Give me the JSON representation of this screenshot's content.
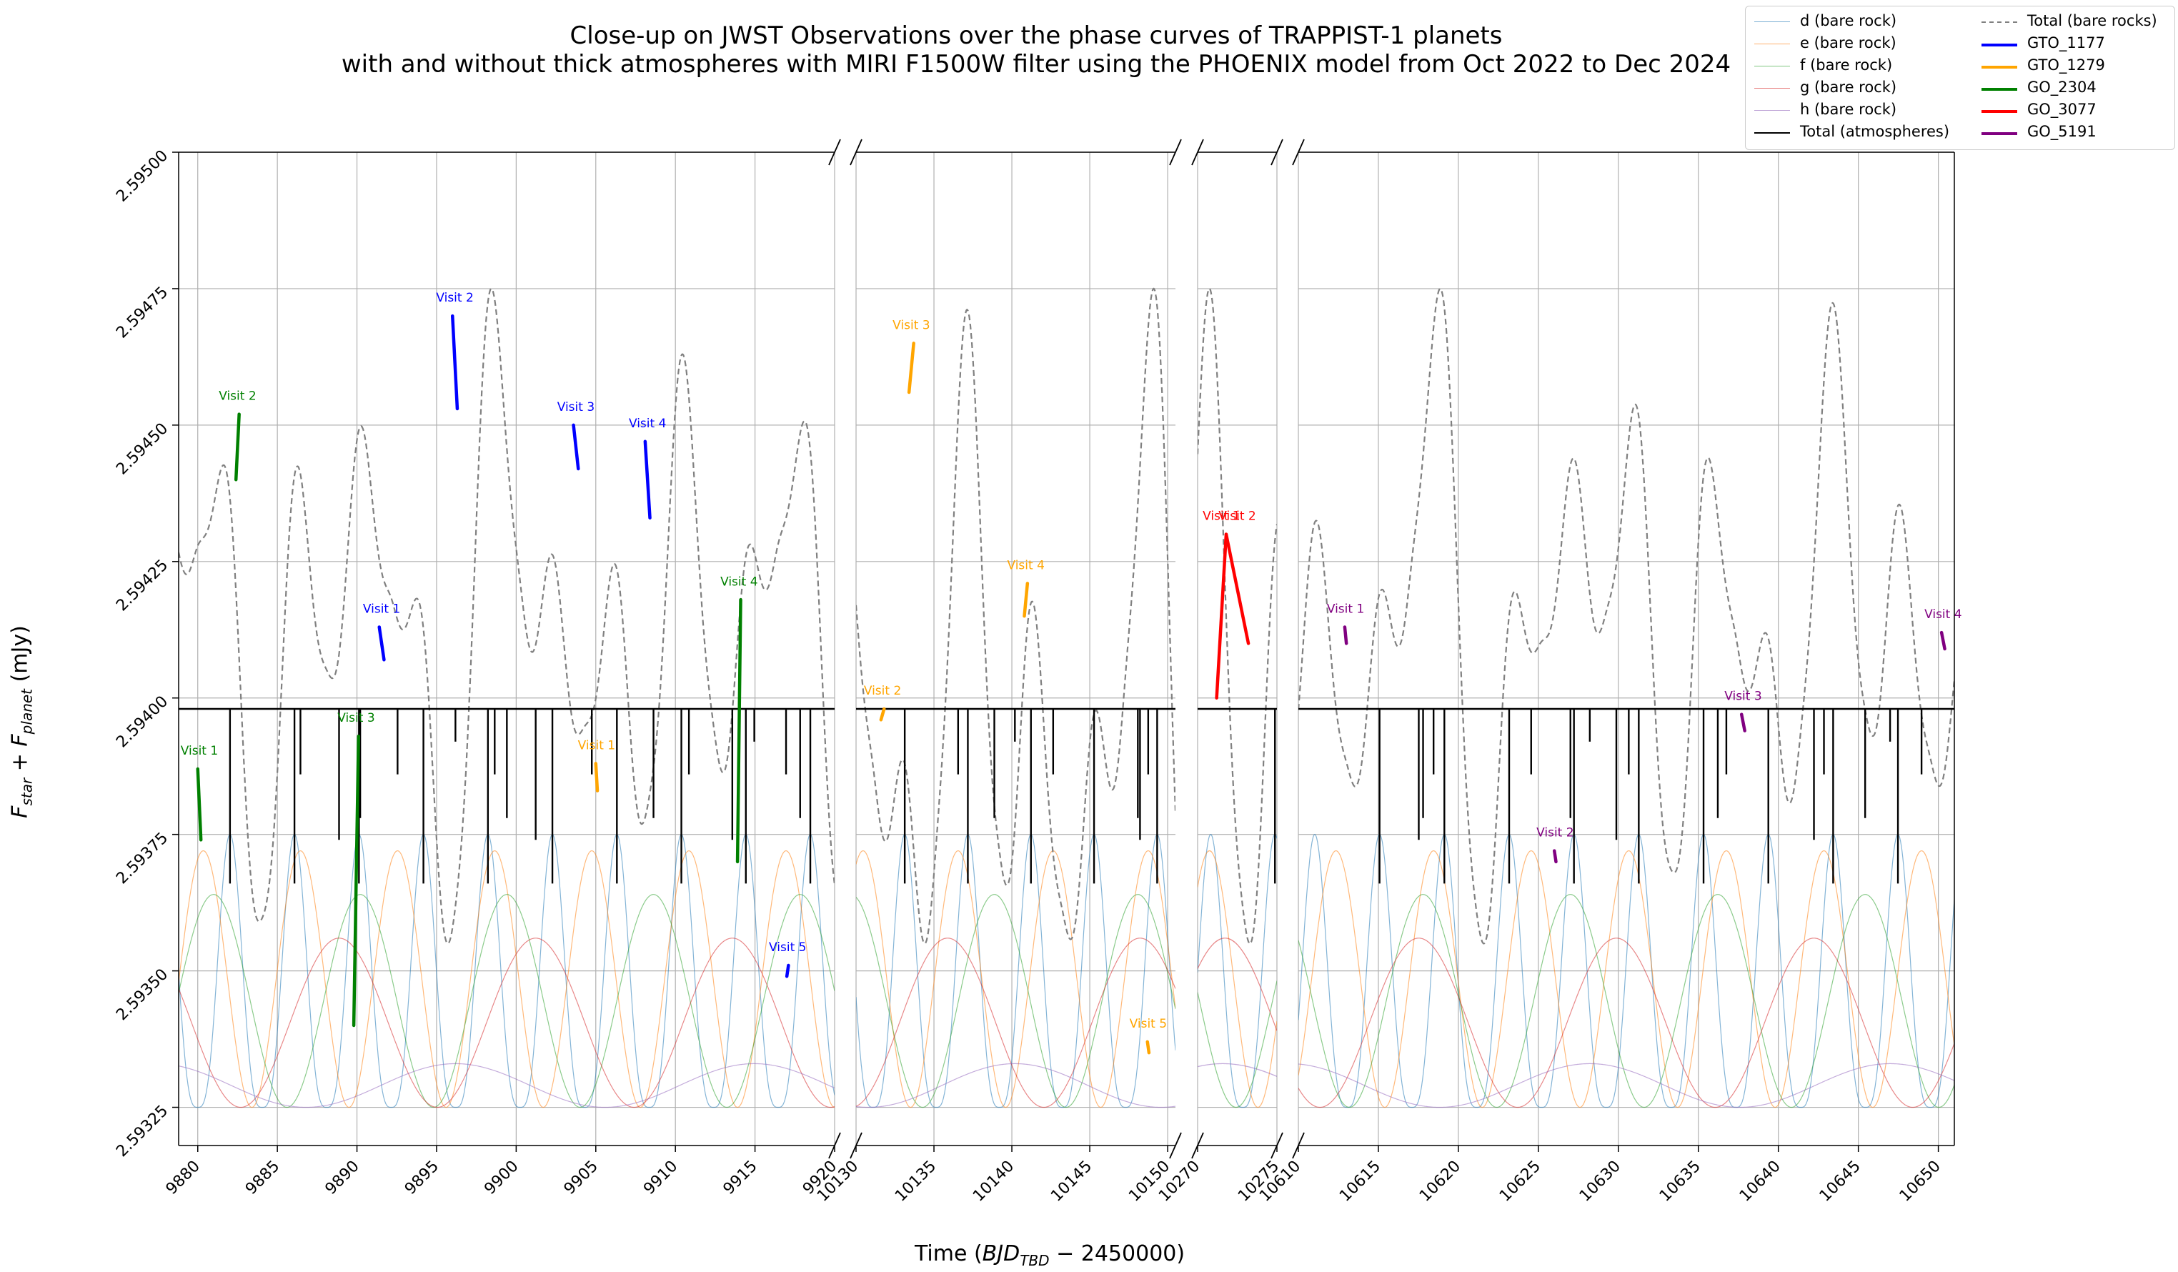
{
  "title_lines": [
    "Close-up on JWST Observations over the phase curves of TRAPPIST-1 planets",
    "with and without thick atmospheres with MIRI F1500W filter using the PHOENIX model from Oct 2022 to Dec 2024"
  ],
  "ylabel": "F_star + F_planet (mJy)",
  "xlabel": "Time (BJD_TBD − 2450000)",
  "legend": [
    {
      "label": "d (bare rock)",
      "color": "#1f77b4",
      "style": "thin"
    },
    {
      "label": "e (bare rock)",
      "color": "#ff7f0e",
      "style": "thin"
    },
    {
      "label": "f (bare rock)",
      "color": "#2ca02c",
      "style": "thin"
    },
    {
      "label": "g (bare rock)",
      "color": "#d62728",
      "style": "thin"
    },
    {
      "label": "h (bare rock)",
      "color": "#9467bd",
      "style": "thin"
    },
    {
      "label": "Total (atmospheres)",
      "color": "#000000",
      "style": "solid"
    },
    {
      "label": "Total (bare rocks)",
      "color": "#808080",
      "style": "dashed"
    },
    {
      "label": "GTO_1177",
      "color": "#0000ff",
      "style": "thick"
    },
    {
      "label": "GTO_1279",
      "color": "#ffa500",
      "style": "thick"
    },
    {
      "label": "GO_2304",
      "color": "#008000",
      "style": "thick"
    },
    {
      "label": "GO_3077",
      "color": "#ff0000",
      "style": "thick"
    },
    {
      "label": "GO_5191",
      "color": "#800080",
      "style": "thick"
    }
  ],
  "chart_data": {
    "type": "line",
    "y_scale": "linear",
    "ylim": [
      2.59318,
      2.595
    ],
    "yticks": [
      2.59325,
      2.5935,
      2.59375,
      2.594,
      2.59425,
      2.5945,
      2.59475,
      2.595
    ],
    "ytick_labels": [
      "2.59325",
      "2.59350",
      "2.59375",
      "2.59400",
      "2.59425",
      "2.59450",
      "2.59475",
      "2.59500"
    ],
    "grid": true,
    "legend_position": "top-right",
    "total_atmospheres_level": 2.59398,
    "panels": [
      {
        "xlim": [
          9878.8,
          9920
        ],
        "xticks": [
          9880,
          9885,
          9890,
          9895,
          9900,
          9905,
          9910,
          9915,
          9920
        ],
        "xtick_labels": [
          "9880",
          "9885",
          "9890",
          "9895",
          "9900",
          "9905",
          "9910",
          "9915",
          "9920"
        ]
      },
      {
        "xlim": [
          10130,
          10150.5
        ],
        "xticks": [
          10130,
          10135,
          10140,
          10145,
          10150
        ],
        "xtick_labels": [
          "10130",
          "10135",
          "10140",
          "10145",
          "10150"
        ]
      },
      {
        "xlim": [
          10270,
          10275
        ],
        "xticks": [
          10270,
          10275
        ],
        "xtick_labels": [
          "10270",
          "10275"
        ]
      },
      {
        "xlim": [
          10610,
          10651
        ],
        "xticks": [
          10610,
          10615,
          10620,
          10625,
          10630,
          10635,
          10640,
          10645,
          10650
        ],
        "xtick_labels": [
          "10610",
          "10615",
          "10620",
          "10625",
          "10630",
          "10635",
          "10640",
          "10645",
          "10650"
        ]
      }
    ],
    "series": [
      {
        "name": "d (bare rock)",
        "color": "#1f77b4",
        "period": 4.05,
        "phase": 9880.0,
        "min": 2.59325,
        "max": 2.59375,
        "kind": "peaked"
      },
      {
        "name": "e (bare rock)",
        "color": "#ff7f0e",
        "period": 6.1,
        "phase": 9883.4,
        "min": 2.59325,
        "max": 2.59372,
        "kind": "smooth"
      },
      {
        "name": "f (bare rock)",
        "color": "#2ca02c",
        "period": 9.21,
        "phase": 9885.6,
        "min": 2.59325,
        "max": 2.59364,
        "kind": "smooth"
      },
      {
        "name": "g (bare rock)",
        "color": "#d62728",
        "period": 12.35,
        "phase": 9882.7,
        "min": 2.59325,
        "max": 2.59356,
        "kind": "smooth"
      },
      {
        "name": "h (bare rock)",
        "color": "#9467bd",
        "period": 18.77,
        "phase": 9886.8,
        "min": 2.59325,
        "max": 2.59333,
        "kind": "smooth"
      }
    ],
    "observations": [
      {
        "program": "GO_2304",
        "label": "Visit 1",
        "x": [
          9880.0,
          9880.2
        ],
        "y": [
          2.59387,
          2.59374
        ],
        "panel": 0
      },
      {
        "program": "GO_2304",
        "label": "Visit 2",
        "x": [
          9882.4,
          9882.6
        ],
        "y": [
          2.5944,
          2.59452
        ],
        "panel": 0
      },
      {
        "program": "GO_2304",
        "label": "Visit 3",
        "x": [
          9889.8,
          9890.1
        ],
        "y": [
          2.5934,
          2.59393
        ],
        "panel": 0
      },
      {
        "program": "GO_2304",
        "label": "Visit 4",
        "x": [
          9913.9,
          9914.1
        ],
        "y": [
          2.5937,
          2.59418
        ],
        "panel": 0
      },
      {
        "program": "GTO_1177",
        "label": "Visit 1",
        "x": [
          9891.4,
          9891.7
        ],
        "y": [
          2.59413,
          2.59407
        ],
        "panel": 0
      },
      {
        "program": "GTO_1177",
        "label": "Visit 2",
        "x": [
          9896.0,
          9896.3
        ],
        "y": [
          2.5947,
          2.59453
        ],
        "panel": 0
      },
      {
        "program": "GTO_1177",
        "label": "Visit 3",
        "x": [
          9903.6,
          9903.9
        ],
        "y": [
          2.5945,
          2.59442
        ],
        "panel": 0
      },
      {
        "program": "GTO_1177",
        "label": "Visit 4",
        "x": [
          9908.1,
          9908.4
        ],
        "y": [
          2.59447,
          2.59433
        ],
        "panel": 0
      },
      {
        "program": "GTO_1177",
        "label": "Visit 5",
        "x": [
          9917.0,
          9917.1
        ],
        "y": [
          2.59349,
          2.59351
        ],
        "panel": 0
      },
      {
        "program": "GTO_1279",
        "label": "Visit 1",
        "x": [
          9905.0,
          9905.1
        ],
        "y": [
          2.59388,
          2.59383
        ],
        "panel": 0
      },
      {
        "program": "GTO_1279",
        "label": "Visit 2",
        "x": [
          10131.6,
          10131.8
        ],
        "y": [
          2.59396,
          2.59398
        ],
        "panel": 1
      },
      {
        "program": "GTO_1279",
        "label": "Visit 3",
        "x": [
          10133.4,
          10133.7
        ],
        "y": [
          2.59456,
          2.59465
        ],
        "panel": 1
      },
      {
        "program": "GTO_1279",
        "label": "Visit 4",
        "x": [
          10140.8,
          10141.0
        ],
        "y": [
          2.59415,
          2.59421
        ],
        "panel": 1
      },
      {
        "program": "GTO_1279",
        "label": "Visit 5",
        "x": [
          10148.7,
          10148.8
        ],
        "y": [
          2.59337,
          2.59335
        ],
        "panel": 1
      },
      {
        "program": "GO_3077",
        "label": "Visit 1",
        "x": [
          10271.2,
          10271.8
        ],
        "y": [
          2.594,
          2.5943
        ],
        "panel": 2
      },
      {
        "program": "GO_3077",
        "label": "Visit 2",
        "x": [
          10271.8,
          10273.2
        ],
        "y": [
          2.5943,
          2.5941
        ],
        "panel": 2
      },
      {
        "program": "GO_5191",
        "label": "Visit 1",
        "x": [
          10612.9,
          10613.0
        ],
        "y": [
          2.59413,
          2.5941
        ],
        "panel": 3
      },
      {
        "program": "GO_5191",
        "label": "Visit 2",
        "x": [
          10626.0,
          10626.1
        ],
        "y": [
          2.59372,
          2.5937
        ],
        "panel": 3
      },
      {
        "program": "GO_5191",
        "label": "Visit 3",
        "x": [
          10637.7,
          10637.9
        ],
        "y": [
          2.59397,
          2.59394
        ],
        "panel": 3
      },
      {
        "program": "GO_5191",
        "label": "Visit 4",
        "x": [
          10650.2,
          10650.4
        ],
        "y": [
          2.59412,
          2.59409
        ],
        "panel": 3
      }
    ]
  }
}
